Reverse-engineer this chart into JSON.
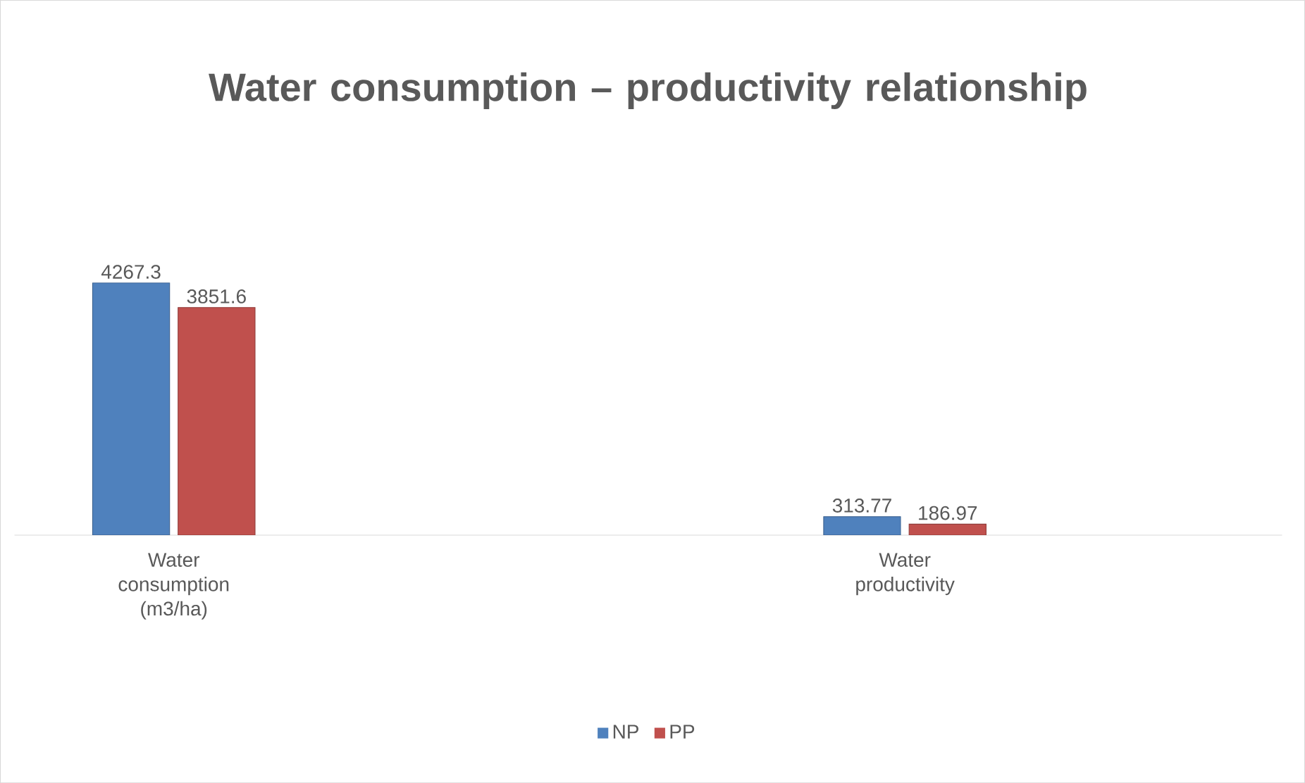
{
  "chart_data": {
    "type": "bar",
    "title": "Water consumption – productivity relationship",
    "categories": [
      "Water consumption (m3/ha)",
      "Water productivity"
    ],
    "series": [
      {
        "name": "NP",
        "color": "#4f81bd",
        "values": [
          4267.3,
          313.77
        ]
      },
      {
        "name": "PP",
        "color": "#c0504d",
        "values": [
          3851.6,
          186.97
        ]
      }
    ],
    "data_labels": true,
    "legend": "bottom"
  }
}
